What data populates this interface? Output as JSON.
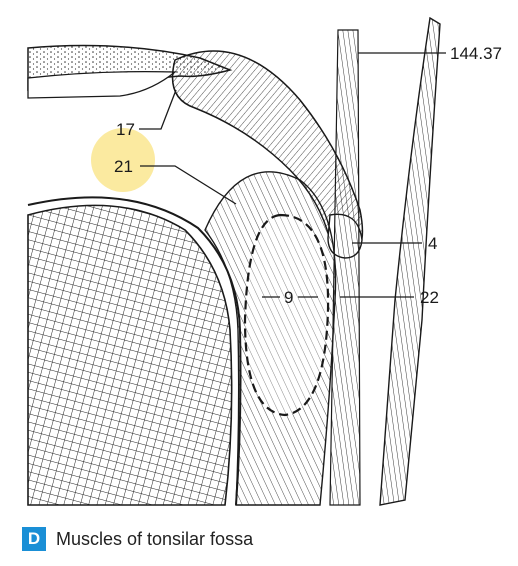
{
  "labels": {
    "l144": "144.37",
    "l17": "17",
    "l21": "21",
    "l4": "4",
    "l9": "9",
    "l22": "22"
  },
  "caption": {
    "badge": "D",
    "text": "Muscles of tonsilar fossa"
  },
  "colors": {
    "highlight": "#fbeaa0",
    "badge": "#1a8fd6",
    "ink": "#1a1a1a"
  }
}
